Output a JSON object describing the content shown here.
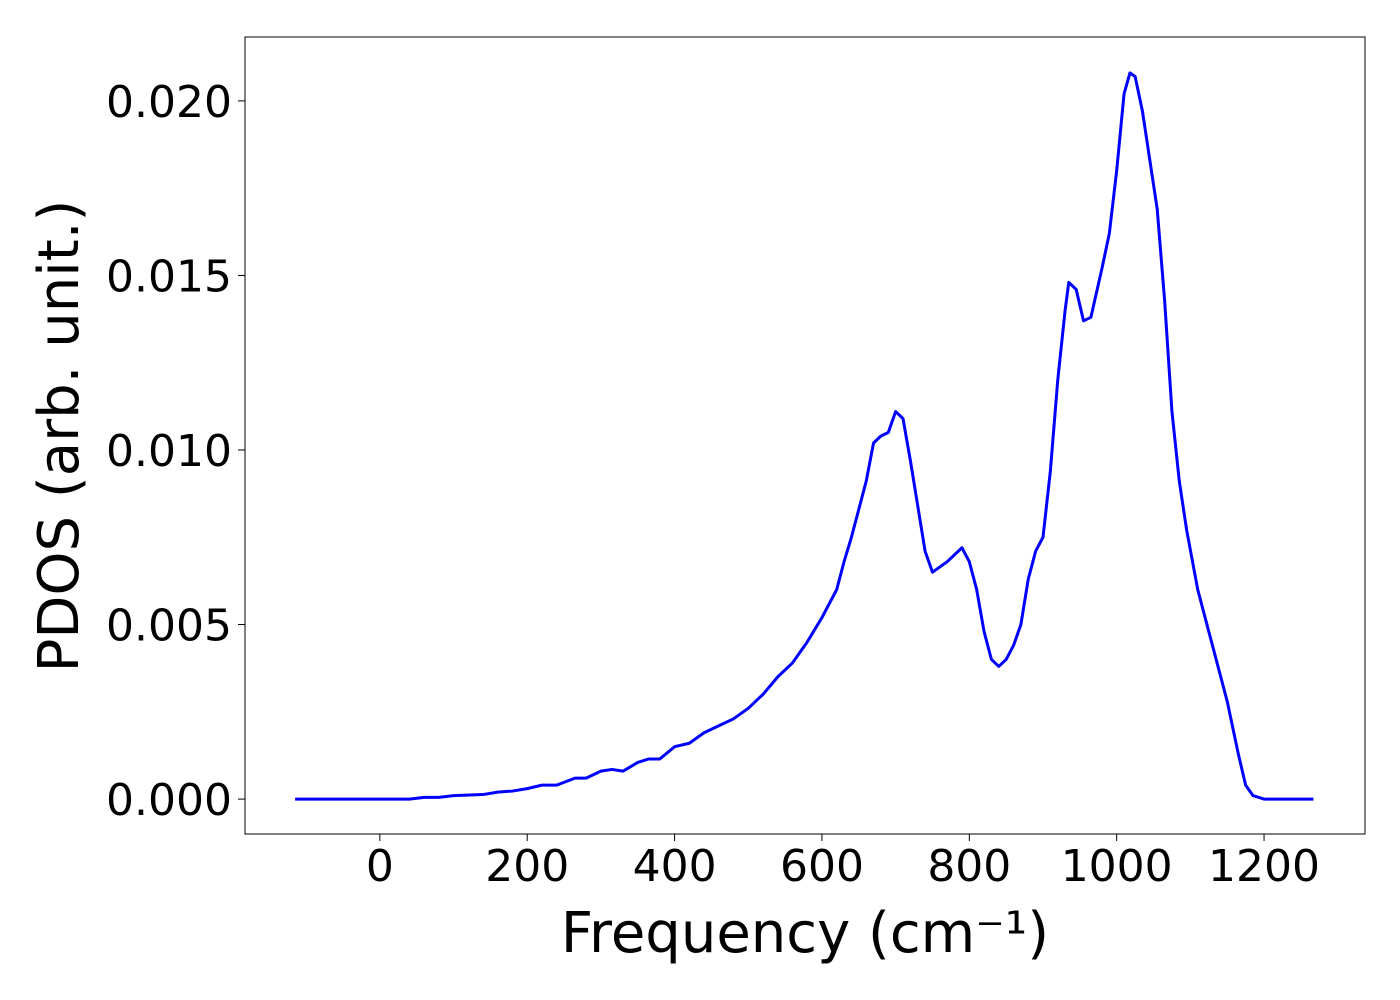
{
  "chart_data": {
    "type": "line",
    "xlabel": "Frequency (cm⁻¹)",
    "ylabel": "PDOS (arb. unit.)",
    "x": [
      -115,
      40,
      60,
      80,
      100,
      140,
      160,
      180,
      200,
      220,
      240,
      265,
      280,
      300,
      315,
      330,
      350,
      365,
      380,
      400,
      420,
      440,
      460,
      480,
      500,
      520,
      540,
      560,
      580,
      600,
      620,
      630,
      640,
      660,
      670,
      680,
      690,
      700,
      710,
      720,
      740,
      750,
      770,
      790,
      800,
      810,
      820,
      830,
      840,
      850,
      860,
      870,
      880,
      890,
      900,
      910,
      920,
      930,
      935,
      945,
      955,
      965,
      980,
      990,
      1000,
      1010,
      1018,
      1025,
      1035,
      1045,
      1055,
      1065,
      1075,
      1085,
      1095,
      1110,
      1130,
      1150,
      1165,
      1175,
      1185,
      1200,
      1267
    ],
    "series": [
      {
        "name": "PDOS",
        "color": "#0000ff",
        "values": [
          0,
          0,
          5e-05,
          5e-05,
          0.0001,
          0.00013,
          0.0002,
          0.00023,
          0.0003,
          0.0004,
          0.0004,
          0.0006,
          0.0006,
          0.0008,
          0.00085,
          0.0008,
          0.00105,
          0.00115,
          0.00115,
          0.0015,
          0.0016,
          0.0019,
          0.0021,
          0.0023,
          0.0026,
          0.003,
          0.0035,
          0.0039,
          0.0045,
          0.0052,
          0.006,
          0.0068,
          0.0075,
          0.0091,
          0.0102,
          0.0104,
          0.0105,
          0.0111,
          0.0109,
          0.0097,
          0.0071,
          0.0065,
          0.0068,
          0.0072,
          0.0068,
          0.006,
          0.0048,
          0.004,
          0.0038,
          0.004,
          0.0044,
          0.005,
          0.0063,
          0.0071,
          0.0075,
          0.0094,
          0.012,
          0.014,
          0.0148,
          0.0146,
          0.0137,
          0.0138,
          0.0152,
          0.0162,
          0.018,
          0.0202,
          0.0208,
          0.0207,
          0.0197,
          0.0183,
          0.0169,
          0.0143,
          0.0111,
          0.0091,
          0.0077,
          0.006,
          0.0044,
          0.0028,
          0.0013,
          0.0004,
          0.0001,
          0,
          0
        ]
      }
    ],
    "xlim": [
      -183,
      1337
    ],
    "ylim": [
      -0.001,
      0.02183
    ],
    "xticks": [
      0,
      200,
      400,
      600,
      800,
      1000,
      1200
    ],
    "yticks": [
      {
        "value": 0,
        "label": "0.000"
      },
      {
        "value": 0.005,
        "label": "0.005"
      },
      {
        "value": 0.01,
        "label": "0.010"
      },
      {
        "value": 0.015,
        "label": "0.015"
      },
      {
        "value": 0.02,
        "label": "0.020"
      }
    ]
  }
}
